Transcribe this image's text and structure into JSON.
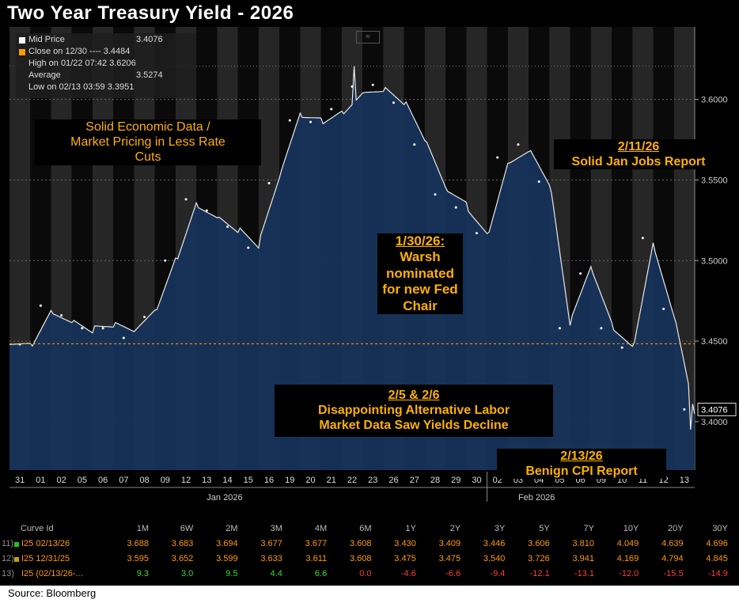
{
  "title": "Two Year Treasury Yield - 2026",
  "legend": [
    {
      "label": "Mid Price",
      "value": "3.4076",
      "color": "#ffffff"
    },
    {
      "label": "Close on 12/30 ---- 3.4484",
      "value": "",
      "color": "#ff9a00"
    },
    {
      "label": "High on 01/22 07:42 3.6206",
      "value": "",
      "color": "#aaaaaa"
    },
    {
      "label": "Average",
      "value": "3.5274",
      "color": "#aaaaaa"
    },
    {
      "label": "Low on 02/13 03:59 3.3951",
      "value": "",
      "color": "#aaaaaa"
    }
  ],
  "annotations": {
    "solid": [
      "Solid Economic Data /",
      "Market Pricing in Less Rate",
      "Cuts"
    ],
    "warsh": [
      "1/30/26:",
      "Warsh",
      "nominated",
      "for new Fed",
      "Chair"
    ],
    "jobs": [
      "2/11/26",
      "Solid Jan Jobs Report"
    ],
    "labor": [
      "2/5 & 2/6",
      "Disappointing Alternative Labor",
      "Market Data Saw Yields Decline"
    ],
    "cpi": [
      "2/13/26",
      "Benign CPI Report"
    ]
  },
  "last_price_label": "3.4076",
  "chart_data": {
    "type": "line",
    "title": "Two Year Treasury Yield - 2026",
    "ylim": [
      3.37,
      3.645
    ],
    "yticks": [
      "3.4000",
      "3.4500",
      "3.5000",
      "3.5500",
      "3.6000"
    ],
    "reference_lines": [
      {
        "label": "Close on 12/30",
        "value": 3.4484
      },
      {
        "label": "High on 01/22",
        "value": 3.6206
      }
    ],
    "xlabels": [
      "31",
      "01",
      "02",
      "05",
      "06",
      "07",
      "08",
      "09",
      "12",
      "13",
      "14",
      "15",
      "16",
      "19",
      "20",
      "21",
      "22",
      "23",
      "26",
      "27",
      "28",
      "29",
      "30",
      "02",
      "03",
      "04",
      "05",
      "06",
      "09",
      "10",
      "11",
      "12",
      "13"
    ],
    "month_labels": [
      "Jan 2026",
      "Feb 2026"
    ],
    "daily_close": [
      3.448,
      3.472,
      3.466,
      3.458,
      3.458,
      3.452,
      3.465,
      3.5,
      3.538,
      3.531,
      3.521,
      3.508,
      3.548,
      3.587,
      3.586,
      3.594,
      3.608,
      3.609,
      3.598,
      3.572,
      3.541,
      3.533,
      3.517,
      3.564,
      3.572,
      3.549,
      3.458,
      3.492,
      3.458,
      3.446,
      3.514,
      3.47,
      3.4076
    ],
    "high": 3.6206,
    "low": 3.3951,
    "average": 3.5274
  },
  "table": {
    "headers": [
      "Curve Id",
      "1M",
      "6W",
      "2M",
      "3M",
      "4M",
      "6M",
      "1Y",
      "2Y",
      "3Y",
      "5Y",
      "7Y",
      "10Y",
      "20Y",
      "30Y"
    ],
    "rows": [
      {
        "num": "11)",
        "id": "I25 02/13/26",
        "color": "#ff9a00",
        "marker": "#22c022",
        "values": [
          "3.688",
          "3.683",
          "3.694",
          "3.677",
          "3.677",
          "3.608",
          "3.430",
          "3.409",
          "3.446",
          "3.606",
          "3.810",
          "4.049",
          "4.639",
          "4.696"
        ]
      },
      {
        "num": "12)",
        "id": "I25 12/31/25",
        "color": "#ff9a00",
        "marker": "#c8a000",
        "values": [
          "3.595",
          "3.652",
          "3.599",
          "3.633",
          "3.611",
          "3.608",
          "3.475",
          "3.475",
          "3.540",
          "3.726",
          "3.941",
          "4.169",
          "4.794",
          "4.845"
        ]
      },
      {
        "num": "13)",
        "id": "I25 (02/13/26-...",
        "color": "#ff9a00",
        "marker": "",
        "values": [
          "9.3",
          "3.0",
          "9.5",
          "4.4",
          "6.6",
          "0.0",
          "-4.6",
          "-6.6",
          "-9.4",
          "-12.1",
          "-13.1",
          "-12.0",
          "-15.5",
          "-14.9"
        ]
      }
    ]
  },
  "source": "Source: Bloomberg"
}
